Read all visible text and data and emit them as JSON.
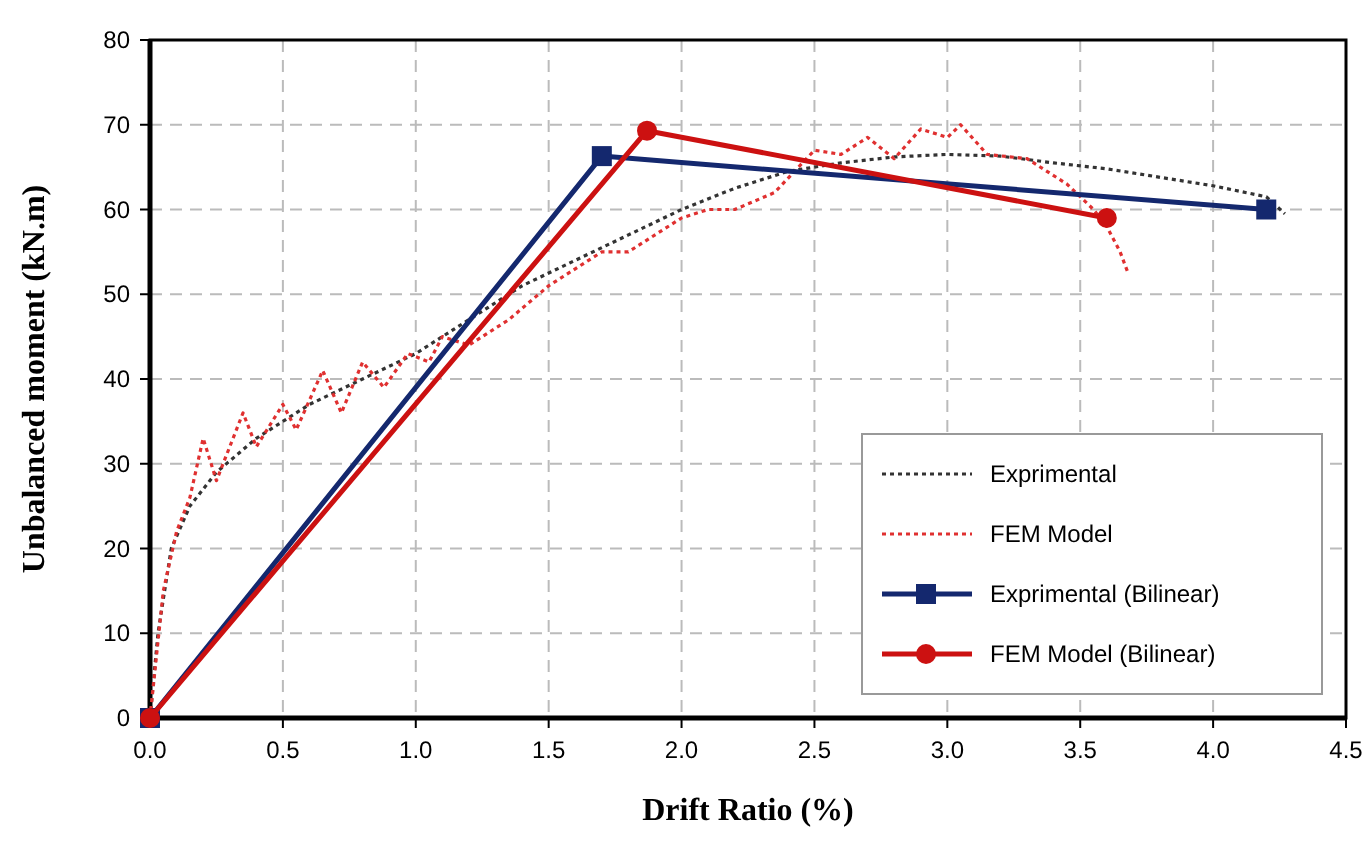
{
  "chart_data": {
    "type": "line",
    "xlabel": "Drift Ratio (%)",
    "ylabel": "Unbalanced moment (kN.m)",
    "xlim": [
      0,
      4.5
    ],
    "ylim": [
      0,
      80
    ],
    "xticks": [
      {
        "value": 0,
        "label": "0.0"
      },
      {
        "value": 0.5,
        "label": "0.5"
      },
      {
        "value": 1,
        "label": "1.0"
      },
      {
        "value": 1.5,
        "label": "1.5"
      },
      {
        "value": 2,
        "label": "2.0"
      },
      {
        "value": 2.5,
        "label": "2.5"
      },
      {
        "value": 3,
        "label": "3.0"
      },
      {
        "value": 3.5,
        "label": "3.5"
      },
      {
        "value": 4,
        "label": "4.0"
      },
      {
        "value": 4.5,
        "label": "4.5"
      }
    ],
    "yticks": [
      0,
      10,
      20,
      30,
      40,
      50,
      60,
      70,
      80
    ],
    "grid": true,
    "legend": "bottom right",
    "series": [
      {
        "name": "Exprimental",
        "color": "#333333",
        "line_style": "dotted",
        "marker": "none",
        "x": [
          0,
          0.03,
          0.08,
          0.15,
          0.25,
          0.4,
          0.6,
          0.8,
          1.0,
          1.2,
          1.4,
          1.6,
          1.8,
          2.0,
          2.2,
          2.4,
          2.6,
          2.8,
          3.0,
          3.2,
          3.4,
          3.6,
          3.8,
          4.0,
          4.2,
          4.27
        ],
        "values": [
          0,
          10,
          20,
          25,
          29,
          33,
          37,
          40,
          43,
          47,
          51,
          54,
          57,
          60,
          62.5,
          64.5,
          65.5,
          66.2,
          66.5,
          66.3,
          65.5,
          64.8,
          63.8,
          62.8,
          61.5,
          59.5
        ]
      },
      {
        "name": "FEM Model",
        "color": "#e03030",
        "line_style": "dotted",
        "marker": "none",
        "x": [
          0,
          0.05,
          0.1,
          0.15,
          0.2,
          0.25,
          0.3,
          0.35,
          0.4,
          0.5,
          0.55,
          0.65,
          0.72,
          0.8,
          0.88,
          0.97,
          1.05,
          1.1,
          1.2,
          1.35,
          1.5,
          1.6,
          1.7,
          1.8,
          2.0,
          2.1,
          2.2,
          2.35,
          2.5,
          2.6,
          2.7,
          2.8,
          2.9,
          3.0,
          3.05,
          3.15,
          3.3,
          3.45,
          3.55,
          3.6,
          3.65,
          3.68
        ],
        "values": [
          0,
          15,
          22,
          26,
          33,
          28,
          32,
          36,
          32,
          37,
          34,
          41,
          36,
          42,
          39,
          43,
          42,
          45,
          44,
          47,
          51,
          53,
          55,
          55,
          59,
          60,
          60,
          62,
          67,
          66.5,
          68.5,
          66,
          69.5,
          68.5,
          70,
          66.5,
          66,
          63,
          60,
          58,
          55,
          52.5
        ]
      },
      {
        "name": "Exprimental (Bilinear)",
        "color": "#14286e",
        "line_style": "solid",
        "marker": "square",
        "x": [
          0,
          1.7,
          4.2
        ],
        "values": [
          0,
          66.3,
          60
        ]
      },
      {
        "name": "FEM Model (Bilinear)",
        "color": "#cc1111",
        "line_style": "solid",
        "marker": "circle",
        "x": [
          0,
          1.87,
          3.6
        ],
        "values": [
          0,
          69.3,
          59
        ]
      }
    ]
  }
}
